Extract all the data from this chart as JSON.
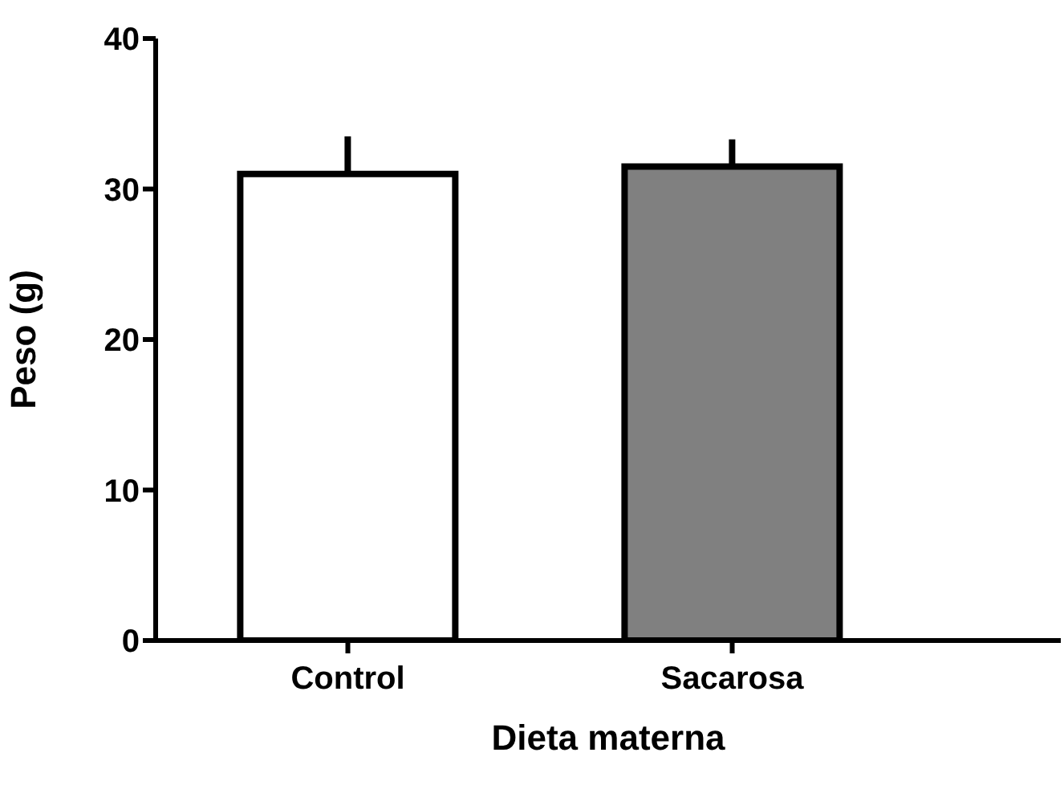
{
  "chart_data": {
    "type": "bar",
    "xlabel": "Dieta materna",
    "ylabel": "Peso (g)",
    "categories": [
      "Control",
      "Sacarosa"
    ],
    "values": [
      31,
      31.5
    ],
    "colors": [
      "#ffffff",
      "#808080"
    ],
    "errors": [
      [
        31,
        33.5
      ],
      [
        31.5,
        33.3
      ]
    ],
    "ylim": [
      0,
      40
    ],
    "yticks": [
      0,
      10,
      20,
      30,
      40
    ]
  }
}
